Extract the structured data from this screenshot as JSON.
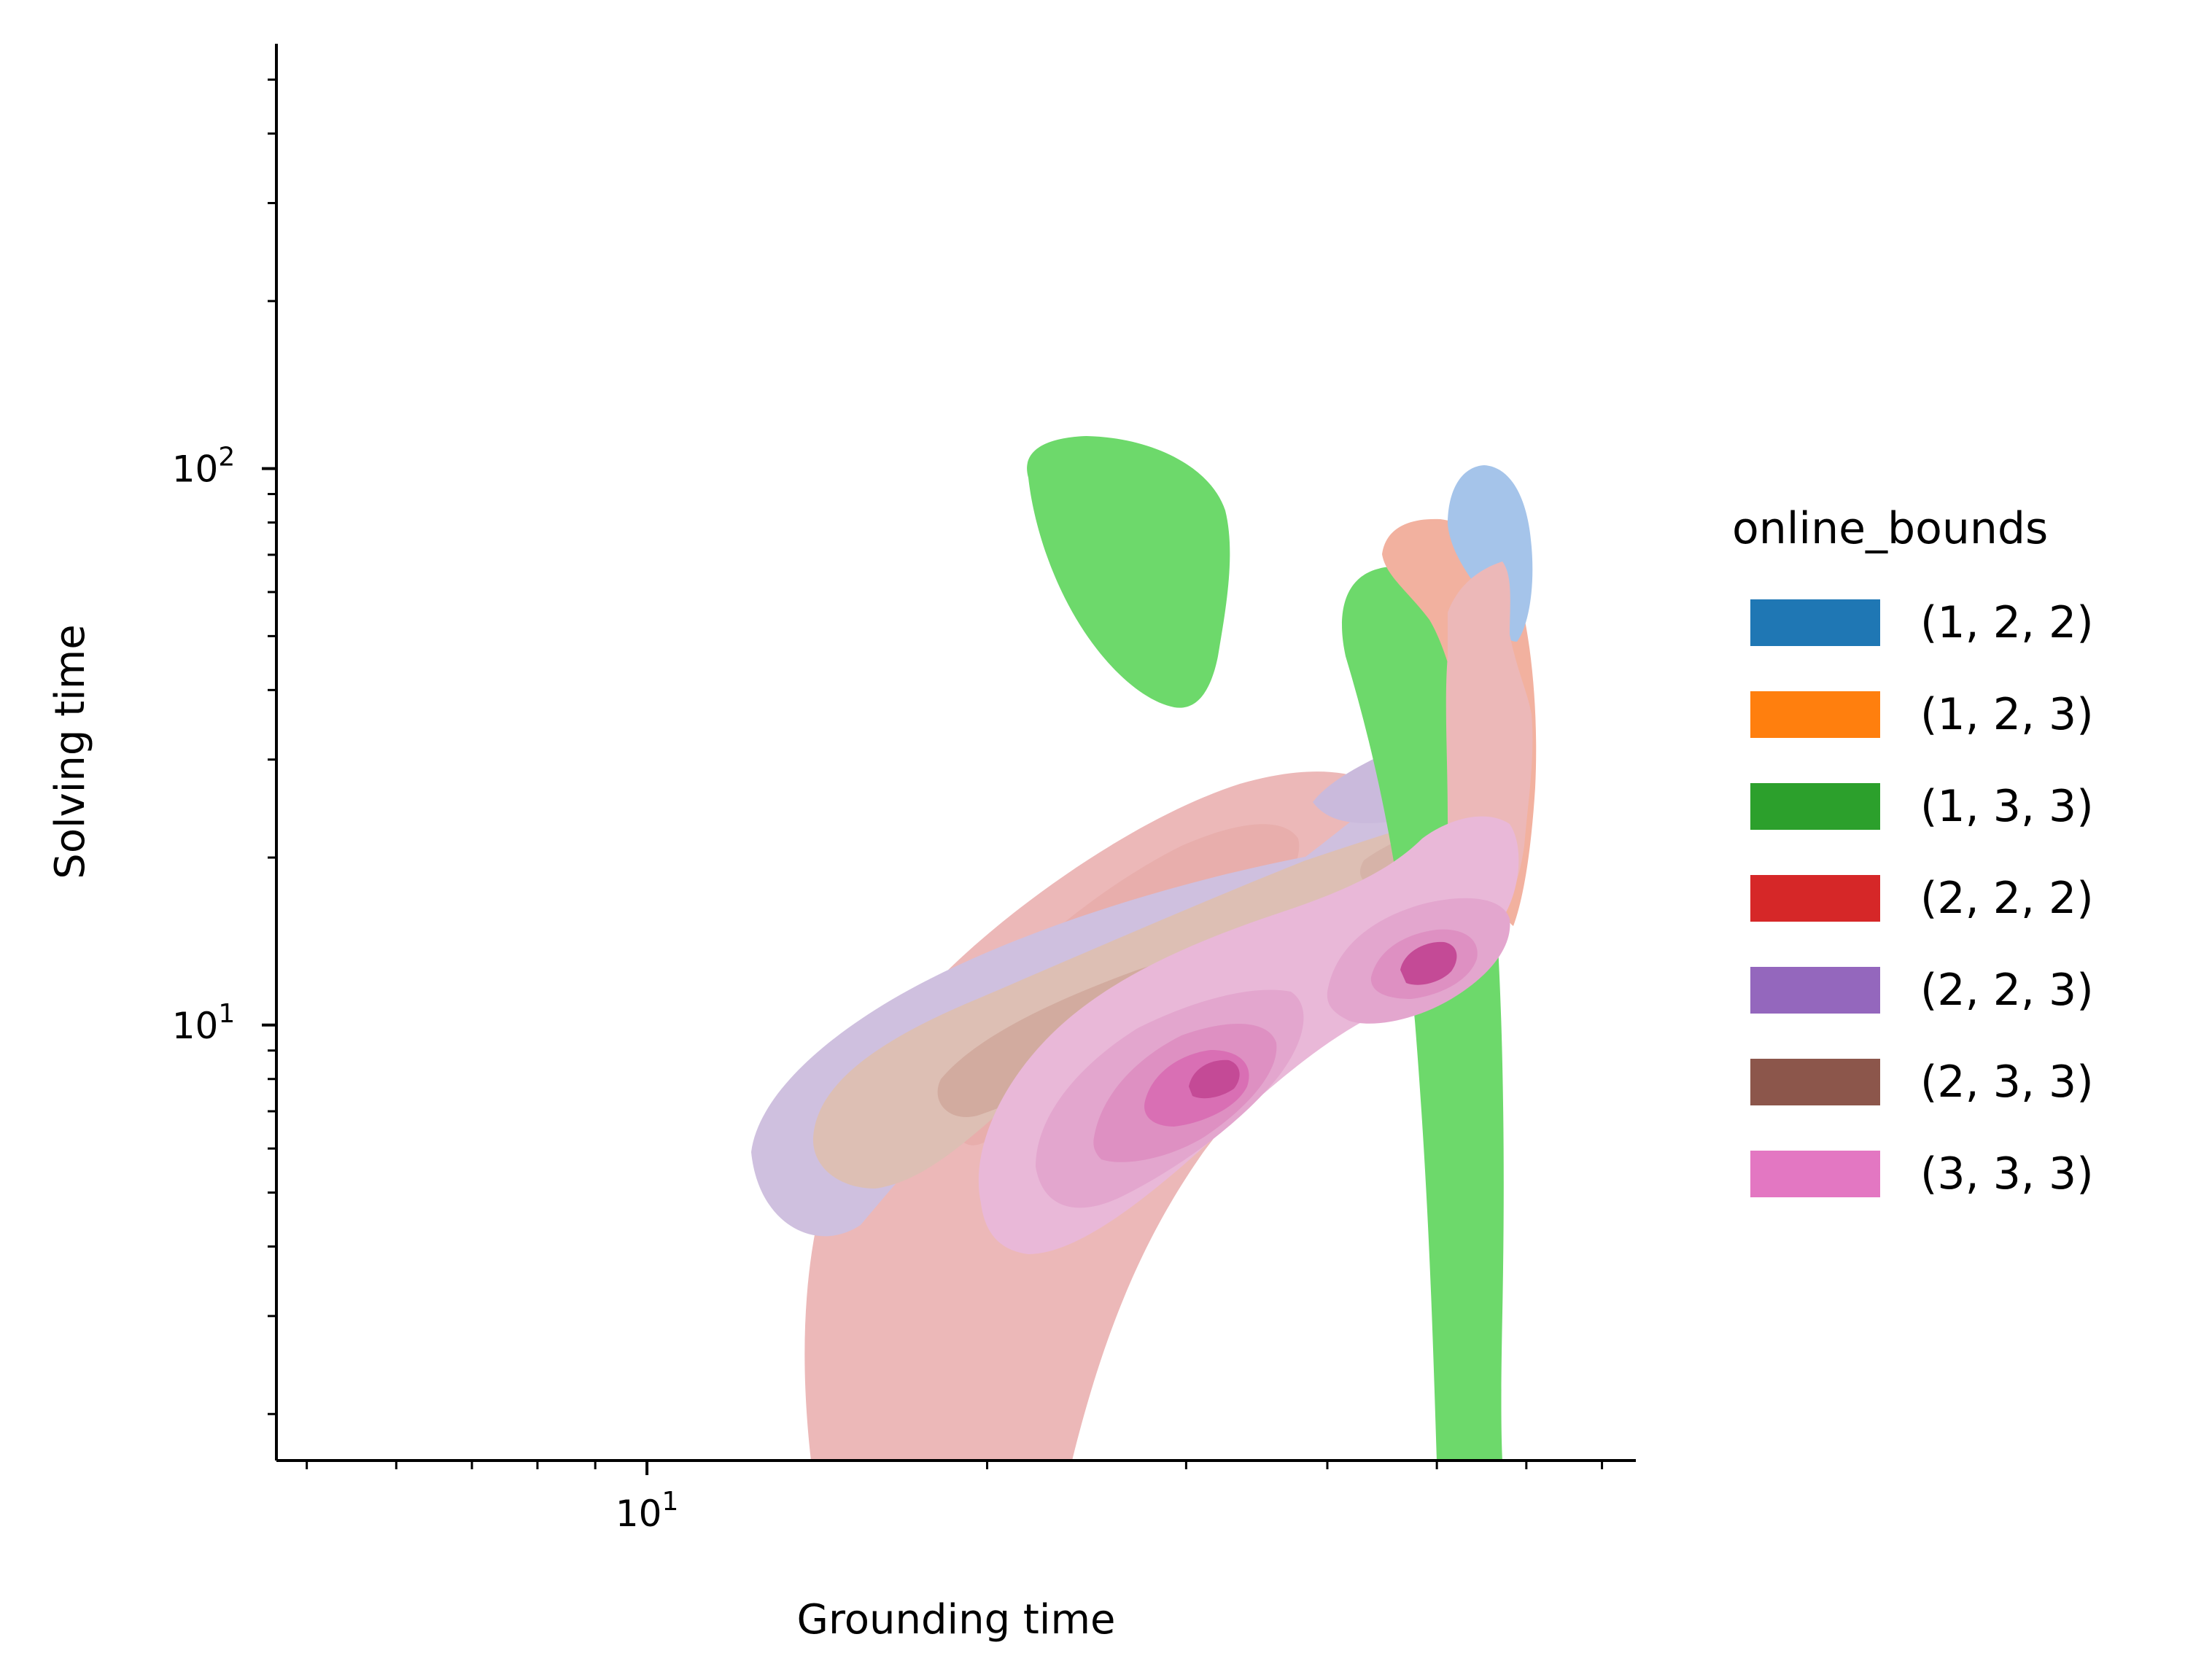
{
  "chart_data": {
    "type": "kde",
    "title": "",
    "xlabel": "Grounding time",
    "ylabel": "Solving time",
    "xscale": "log",
    "yscale": "log",
    "xlim": [
      4.7,
      75
    ],
    "ylim": [
      1.65,
      580
    ],
    "x_major_ticks": [
      {
        "value": 10,
        "base": "10",
        "exp": "1"
      }
    ],
    "y_major_ticks": [
      {
        "value": 10,
        "base": "10",
        "exp": "1"
      },
      {
        "value": 100,
        "base": "10",
        "exp": "2"
      }
    ],
    "x_minor_ticks": [
      5,
      6,
      7,
      8,
      9,
      20,
      30,
      40,
      50,
      60,
      70
    ],
    "y_minor_ticks": [
      2,
      3,
      4,
      5,
      6,
      7,
      8,
      9,
      20,
      30,
      40,
      50,
      60,
      70,
      80,
      90,
      200,
      300,
      400,
      500
    ],
    "grid": false,
    "legend_position": "right",
    "legend": {
      "title": "online_bounds",
      "entries": [
        {
          "label": "(1, 2, 2)",
          "color": "#1f77b4"
        },
        {
          "label": "(1, 2, 3)",
          "color": "#ff7f0e"
        },
        {
          "label": "(1, 3, 3)",
          "color": "#2ca02c"
        },
        {
          "label": "(2, 2, 2)",
          "color": "#d62728"
        },
        {
          "label": "(2, 2, 3)",
          "color": "#9467bd"
        },
        {
          "label": "(2, 3, 3)",
          "color": "#8c564b"
        },
        {
          "label": "(3, 3, 3)",
          "color": "#e377c2"
        }
      ]
    },
    "series": [
      {
        "name": "(1, 2, 2)",
        "color": "#a5c4ea",
        "regions": [
          {
            "x": [
              50,
              56
            ],
            "y": [
              38,
              101
            ],
            "cx": 53,
            "cy": 65
          }
        ]
      },
      {
        "name": "(1, 2, 3)",
        "color": "#f2b19f",
        "regions": [
          {
            "x": [
              42,
              57
            ],
            "y": [
              14,
              80
            ],
            "cx": 48,
            "cy": 40
          }
        ]
      },
      {
        "name": "(1, 3, 3)",
        "color": "#6dd96b",
        "regions": [
          {
            "x": [
              21,
              31
            ],
            "y": [
              37,
              115
            ],
            "cx": 25,
            "cy": 80
          },
          {
            "x": [
              39,
              51
            ],
            "y": [
              1.65,
              66
            ],
            "cx": 45,
            "cy": 20
          }
        ]
      },
      {
        "name": "(2, 2, 2)",
        "color": "#ecb8b8",
        "regions": [
          {
            "x": [
              11,
              52
            ],
            "y": [
              1.65,
              29
            ],
            "cx": 24,
            "cy": 12
          }
        ]
      },
      {
        "name": "(2, 2, 3)",
        "color": "#cfc0df",
        "regions": [
          {
            "x": [
              8.5,
              57
            ],
            "y": [
              3.3,
              36
            ],
            "cx": 16,
            "cy": 9
          }
        ]
      },
      {
        "name": "(2, 3, 3)",
        "color": "#ddbfb4",
        "regions": [
          {
            "x": [
              9.5,
              56
            ],
            "y": [
              4.5,
              25
            ],
            "cx": 20,
            "cy": 10
          }
        ]
      },
      {
        "name": "(3, 3, 3)",
        "color": "#e9b8d8",
        "regions": [
          {
            "x": [
              14,
              53
            ],
            "y": [
              3.4,
              17
            ],
            "cx": 27,
            "cy": 8.3
          }
        ],
        "peaks": [
          {
            "x": 27,
            "y": 8.3
          },
          {
            "x": 42.5,
            "y": 12.3
          }
        ]
      }
    ]
  }
}
